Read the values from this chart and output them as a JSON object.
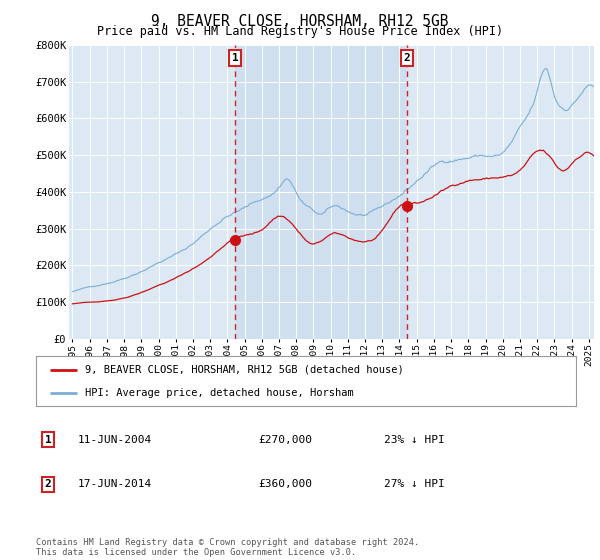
{
  "title": "9, BEAVER CLOSE, HORSHAM, RH12 5GB",
  "subtitle": "Price paid vs. HM Land Registry's House Price Index (HPI)",
  "bg_color": "#dce9f5",
  "shade_color": "#c5d9ee",
  "hpi_color": "#7aadd4",
  "price_color": "#cc1111",
  "legend_line1": "9, BEAVER CLOSE, HORSHAM, RH12 5GB (detached house)",
  "legend_line2": "HPI: Average price, detached house, Horsham",
  "footer": "Contains HM Land Registry data © Crown copyright and database right 2024.\nThis data is licensed under the Open Government Licence v3.0.",
  "ylim": [
    0,
    800000
  ],
  "yticks": [
    0,
    100000,
    200000,
    300000,
    400000,
    500000,
    600000,
    700000,
    800000
  ],
  "ytick_labels": [
    "£0",
    "£100K",
    "£200K",
    "£300K",
    "£400K",
    "£500K",
    "£600K",
    "£700K",
    "£800K"
  ],
  "sale1_year": 2004.44,
  "sale1_price": 270000,
  "sale2_year": 2014.44,
  "sale2_price": 360000,
  "xlim_left": 1994.8,
  "xlim_right": 2025.3
}
